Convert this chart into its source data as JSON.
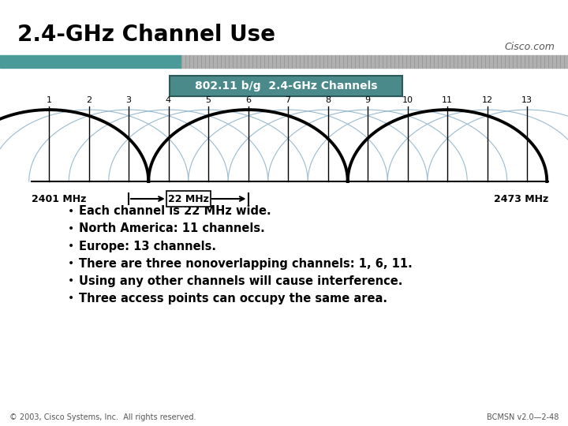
{
  "title": "2.4-GHz Channel Use",
  "background_color": "#ffffff",
  "header_teal_color": "#4a9a9a",
  "header_gray_color": "#aaaaaa",
  "cisco_text": "Cisco.com",
  "box_label": "802.11 b/g  2.4-GHz Channels",
  "box_bg": "#4a8a8a",
  "box_text_color": "#ffffff",
  "nonoverlap_channels": [
    1,
    6,
    11
  ],
  "freq_left": "2401 MHz",
  "freq_right": "2473 MHz",
  "bw_label": "22 MHz",
  "bullet_points": [
    "Each channel is 22 MHz wide.",
    "North America: 11 channels.",
    "Europe: 13 channels.",
    "There are three nonoverlapping channels: 1, 6, 11.",
    "Using any other channels will cause interference.",
    "Three access points can occupy the same area."
  ],
  "footer_left": "© 2003, Cisco Systems, Inc.  All rights reserved.",
  "footer_right": "BCMSN v2.0—2-48",
  "title_fontsize": 20,
  "bullet_fontsize": 10.5
}
